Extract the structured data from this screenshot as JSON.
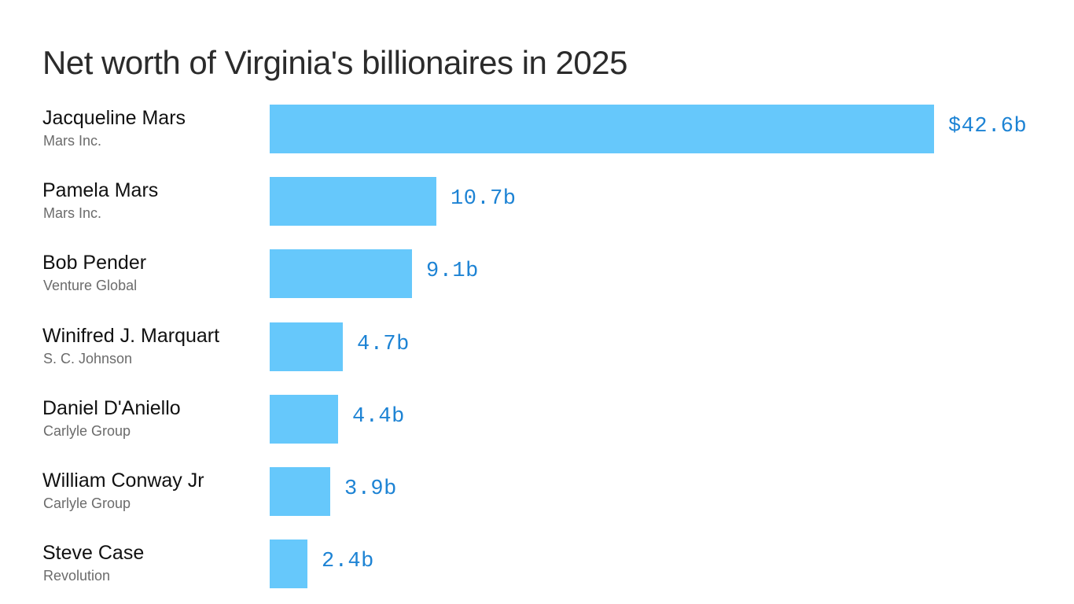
{
  "chart_data": {
    "type": "bar",
    "orientation": "horizontal",
    "title": "Net worth of Virginia's billionaires in 2025",
    "categories": [
      "Jacqueline Mars",
      "Pamela Mars",
      "Bob Pender",
      "Winifred J. Marquart",
      "Daniel D'Aniello",
      "William Conway Jr",
      "Steve Case"
    ],
    "subcategories": [
      "Mars Inc.",
      "Mars Inc.",
      "Venture Global",
      "S. C. Johnson",
      "Carlyle Group",
      "Carlyle Group",
      "Revolution"
    ],
    "values": [
      42.6,
      10.7,
      9.1,
      4.7,
      4.4,
      3.9,
      2.4
    ],
    "data_labels": [
      "$42.6b",
      "10.7b",
      "9.1b",
      "4.7b",
      "4.4b",
      "3.9b",
      "2.4b"
    ],
    "unit": "billion USD",
    "xlim": [
      0,
      42.6
    ],
    "grid": false,
    "legend": "none"
  },
  "colors": {
    "bar": "#66c8fb",
    "label": "#1d83d4",
    "name": "#111111",
    "company": "#6b6b6b"
  }
}
